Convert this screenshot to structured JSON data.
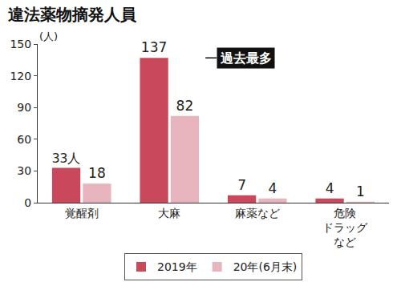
{
  "chart_data": {
    "type": "bar",
    "title": "違法薬物摘発人員",
    "y_label": "(人)",
    "categories": [
      "覚醒剤",
      "大麻",
      "麻薬など",
      "危険\nドラッグ\nなど"
    ],
    "series": [
      {
        "name": "2019年",
        "color": "#c9485b",
        "values": [
          33,
          137,
          7,
          4
        ],
        "value_labels": [
          "33人",
          "137",
          "7",
          "4"
        ]
      },
      {
        "name": "20年(6月末)",
        "color": "#e8b4bd",
        "values": [
          18,
          82,
          4,
          1
        ]
      }
    ],
    "ylim": [
      0,
      150
    ],
    "yticks": [
      0,
      30,
      60,
      90,
      120,
      150
    ],
    "grid": false,
    "legend": "bottom",
    "data_labels": true,
    "annotations": [
      {
        "text": "過去最多",
        "x": "大麻",
        "y": 137
      }
    ]
  }
}
